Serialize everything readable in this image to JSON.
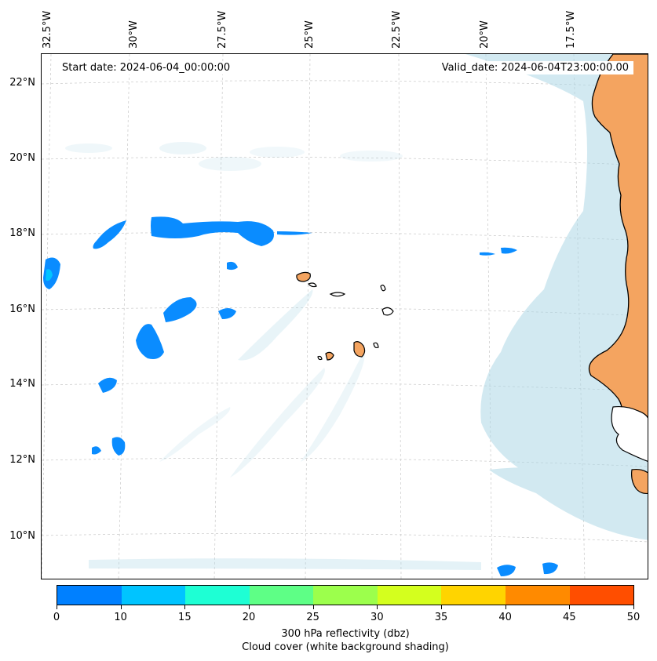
{
  "header": {
    "start_date": "Start date: 2024-06-04_00:00:00",
    "valid_date": "Valid_date: 2024-06-04T23:00:00.00"
  },
  "axes": {
    "lon_labels": [
      "32.5°W",
      "30°W",
      "27.5°W",
      "25°W",
      "22.5°W",
      "20°W",
      "17.5°W"
    ],
    "lat_labels": [
      "22°N",
      "20°N",
      "18°N",
      "16°N",
      "14°N",
      "12°N",
      "10°N"
    ]
  },
  "colorbar": {
    "ticks": [
      "0",
      "10",
      "15",
      "20",
      "25",
      "30",
      "35",
      "40",
      "45",
      "50"
    ],
    "colors": [
      "#0080ff",
      "#00c4ff",
      "#1effd4",
      "#5eff86",
      "#9cff4c",
      "#d4ff1e",
      "#ffd400",
      "#ff8a00",
      "#ff4e00"
    ],
    "label_line1": "300 hPa reflectivity (dbz)",
    "label_line2": "Cloud cover (white background shading)"
  },
  "map": {
    "land_color": "#f4a460",
    "cloud_color": "#add8e6",
    "reflectivity_color": "#0a8cff",
    "reflectivity_core_color": "#00c4ff"
  }
}
